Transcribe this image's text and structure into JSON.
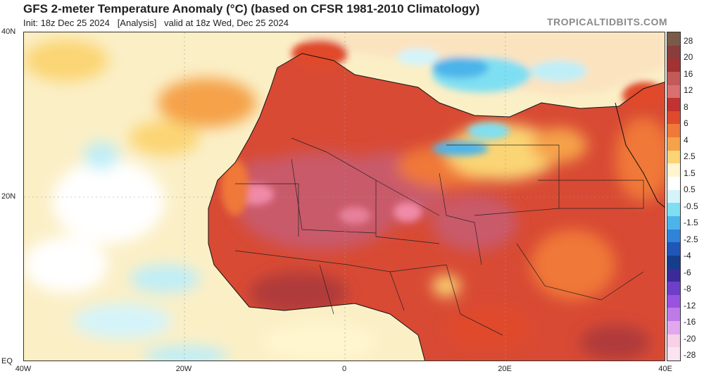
{
  "header": {
    "title": "GFS 2-meter Temperature Anomaly (°C) (based on CFSR 1981-2010 Climatology)",
    "subtitle": "Init: 18z Dec 25 2024   [Analysis]   valid at 18z Wed, Dec 25 2024",
    "site": "TROPICALTIDBITS.COM"
  },
  "map": {
    "region": "North Africa",
    "lat_labels": [
      "40N",
      "20N",
      "EQ"
    ],
    "lon_labels": [
      "40W",
      "20W",
      "0",
      "20E",
      "40E"
    ],
    "lat_range": [
      0,
      40
    ],
    "lon_range": [
      -40,
      40
    ],
    "ocean_color": "#fbefc6",
    "land_base_color": "#d84a34"
  },
  "colorbar": {
    "labels": [
      "28",
      "20",
      "16",
      "12",
      "8",
      "6",
      "4",
      "2.5",
      "1.5",
      "0.5",
      "-0.5",
      "-1.5",
      "-2.5",
      "-4",
      "-6",
      "-8",
      "-12",
      "-16",
      "-20",
      "-28"
    ],
    "colors": [
      "#7a5a48",
      "#8a3d3d",
      "#a33232",
      "#c25a5a",
      "#d96f6f",
      "#c23232",
      "#e04a2c",
      "#f07838",
      "#f5a24a",
      "#fbd574",
      "#fff6d0",
      "#ffffff",
      "#d4f4fa",
      "#7fdff2",
      "#4cb4ea",
      "#2f83d8",
      "#1f56b8",
      "#153d8c",
      "#3d2a9a",
      "#6e3fc8",
      "#9a52e0",
      "#c07ae8",
      "#e2a8ee",
      "#f8d0e8",
      "#fbe3ef"
    ]
  }
}
